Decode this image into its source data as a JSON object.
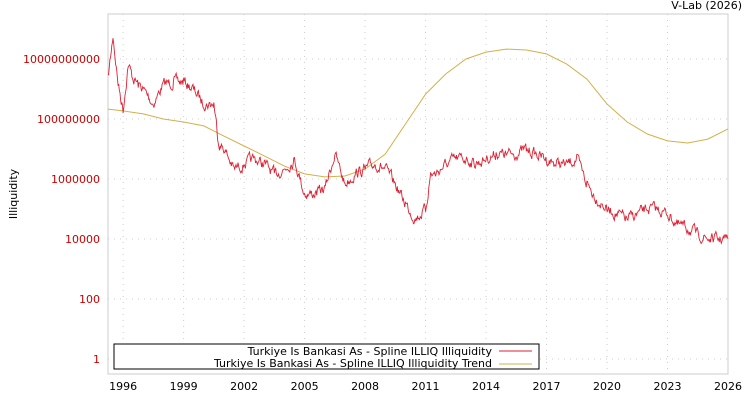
{
  "header": {
    "credit": "V-Lab (2026)"
  },
  "chart_data": {
    "type": "line",
    "title": "",
    "xlabel": "",
    "ylabel": "Illiquidity",
    "yscale": "log",
    "xlim": [
      1995.25,
      2026
    ],
    "ylim_log10": [
      -0.5,
      11.5
    ],
    "x_ticks": [
      "1996",
      "1999",
      "2002",
      "2005",
      "2008",
      "2011",
      "2014",
      "2017",
      "2020",
      "2023",
      "2026"
    ],
    "y_ticks": [
      "1",
      "100",
      "10000",
      "1000000",
      "100000000",
      "10000000000"
    ],
    "grid": true,
    "legend_position": "bottom-left",
    "colors": {
      "illiquidity": "#dd2233",
      "trend": "#d4b04a",
      "ytick": "#cc0000"
    },
    "series": [
      {
        "name": "Turkiye Is Bankasi As - Spline ILLIQ Illiquidity",
        "x": [
          1995.25,
          1995.5,
          1995.75,
          1996,
          1996.25,
          1996.5,
          1996.75,
          1997,
          1997.5,
          1998,
          1998.5,
          1999,
          1999.5,
          2000,
          2000.5,
          2000.75,
          2001,
          2001.5,
          2002,
          2002.5,
          2003,
          2003.5,
          2004,
          2004.5,
          2005,
          2005.5,
          2006,
          2006.5,
          2007,
          2007.5,
          2008,
          2008.5,
          2009,
          2009.5,
          2010,
          2010.5,
          2011,
          2011.25,
          2011.5,
          2012,
          2012.5,
          2013,
          2013.5,
          2014,
          2014.5,
          2015,
          2015.5,
          2016,
          2016.5,
          2017,
          2017.5,
          2018,
          2018.5,
          2019,
          2019.5,
          2020,
          2020.5,
          2021,
          2021.5,
          2022,
          2022.5,
          2023,
          2023.5,
          2024,
          2024.5,
          2025,
          2025.5,
          2026
        ],
        "log10_y": [
          9.33,
          10.77,
          9.17,
          8.33,
          9.83,
          9.33,
          9.17,
          9.0,
          8.5,
          9.17,
          9.23,
          9.23,
          9.0,
          8.5,
          8.5,
          7.17,
          7.0,
          6.33,
          6.5,
          6.67,
          6.5,
          6.17,
          6.33,
          6.67,
          5.5,
          5.5,
          5.67,
          6.83,
          5.83,
          6.17,
          6.33,
          6.5,
          6.33,
          5.83,
          5.17,
          4.67,
          5.0,
          6.17,
          6.17,
          6.5,
          6.67,
          6.67,
          6.5,
          6.67,
          6.83,
          6.83,
          6.83,
          7.0,
          6.83,
          6.67,
          6.5,
          6.5,
          6.67,
          5.83,
          5.33,
          5.0,
          4.83,
          4.67,
          4.83,
          5.0,
          5.0,
          4.83,
          4.5,
          4.33,
          4.17,
          4.0,
          4.0,
          4.0
        ]
      },
      {
        "name": "Turkiye Is Bankasi As - Spline ILLIQ Illiquidity Trend",
        "x": [
          1995.25,
          1996,
          1997,
          1998,
          1999,
          2000,
          2001,
          2002,
          2003,
          2004,
          2005,
          2006,
          2007,
          2008,
          2009,
          2010,
          2011,
          2012,
          2013,
          2014,
          2015,
          2016,
          2017,
          2018,
          2019,
          2020,
          2021,
          2022,
          2023,
          2024,
          2025,
          2026
        ],
        "log10_y": [
          8.33,
          8.27,
          8.17,
          8.0,
          7.9,
          7.77,
          7.43,
          7.1,
          6.77,
          6.43,
          6.17,
          6.07,
          6.1,
          6.33,
          6.83,
          7.83,
          8.83,
          9.5,
          10.0,
          10.23,
          10.33,
          10.3,
          10.17,
          9.83,
          9.33,
          8.5,
          7.9,
          7.5,
          7.27,
          7.2,
          7.33,
          7.67
        ]
      }
    ]
  }
}
